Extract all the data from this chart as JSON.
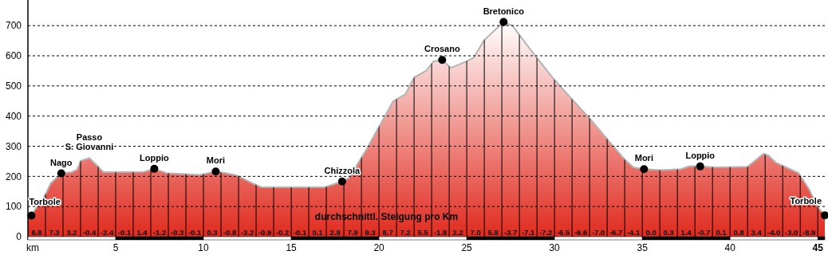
{
  "chart_data": {
    "type": "area",
    "xlim": [
      0,
      45.4
    ],
    "ylim": [
      0,
      785
    ],
    "xticks": [
      {
        "value": 0,
        "label": "km"
      },
      {
        "value": 1,
        "label": null
      },
      {
        "value": 2,
        "label": null
      },
      {
        "value": 3,
        "label": null
      },
      {
        "value": 4,
        "label": null
      },
      5,
      {
        "value": 6,
        "label": null
      },
      {
        "value": 7,
        "label": null
      },
      {
        "value": 8,
        "label": null
      },
      {
        "value": 9,
        "label": null
      },
      10,
      {
        "value": 11,
        "label": null
      },
      {
        "value": 12,
        "label": null
      },
      {
        "value": 13,
        "label": null
      },
      {
        "value": 14,
        "label": null
      },
      15,
      {
        "value": 16,
        "label": null
      },
      {
        "value": 17,
        "label": null
      },
      {
        "value": 18,
        "label": null
      },
      {
        "value": 19,
        "label": null
      },
      20,
      {
        "value": 21,
        "label": null
      },
      {
        "value": 22,
        "label": null
      },
      {
        "value": 23,
        "label": null
      },
      {
        "value": 24,
        "label": null
      },
      25,
      {
        "value": 26,
        "label": null
      },
      {
        "value": 27,
        "label": null
      },
      {
        "value": 28,
        "label": null
      },
      {
        "value": 29,
        "label": null
      },
      30,
      {
        "value": 31,
        "label": null
      },
      {
        "value": 32,
        "label": null
      },
      {
        "value": 33,
        "label": null
      },
      {
        "value": 34,
        "label": null
      },
      35,
      {
        "value": 36,
        "label": null
      },
      {
        "value": 37,
        "label": null
      },
      {
        "value": 38,
        "label": null
      },
      {
        "value": 39,
        "label": null
      },
      40,
      {
        "value": 41,
        "label": null
      },
      {
        "value": 42,
        "label": null
      },
      {
        "value": 43,
        "label": null
      },
      {
        "value": 44,
        "label": null
      },
      45
    ],
    "yticks": [
      0,
      100,
      200,
      300,
      400,
      500,
      600,
      700
    ],
    "grid": true,
    "series": [
      {
        "color": "#e02a1e",
        "x": [
          0,
          0.2,
          1.0,
          1.3,
          1.9,
          2.5,
          2.8,
          3.0,
          3.5,
          3.9,
          4.3,
          5.5,
          6.6,
          7.2,
          7.9,
          9.8,
          10.7,
          11.3,
          11.9,
          12.8,
          13.3,
          15.0,
          16.9,
          17.9,
          18.3,
          19.3,
          19.9,
          20.4,
          20.8,
          21.5,
          22.0,
          22.7,
          23.1,
          23.6,
          24.1,
          25.0,
          25.4,
          26.0,
          27.1,
          27.6,
          28.9,
          30.0,
          30.9,
          32.0,
          33.1,
          34.0,
          34.5,
          35.1,
          36.1,
          37.2,
          37.7,
          38.3,
          39.2,
          41.0,
          41.9,
          42.2,
          42.6,
          43.2,
          43.9,
          44.5,
          45.0,
          45.4
        ],
        "values": [
          70,
          72,
          140,
          177,
          210,
          214,
          222,
          251,
          261,
          238,
          214,
          214,
          215,
          225,
          211,
          205,
          216,
          211,
          203,
          177,
          164,
          164,
          164,
          183,
          195,
          291,
          354,
          406,
          449,
          472,
          528,
          551,
          581,
          586,
          560,
          582,
          594,
          652,
          712,
          700,
          600,
          520,
          462,
          393,
          317,
          256,
          230,
          224,
          221,
          224,
          234,
          233,
          230,
          232,
          275,
          269,
          246,
          230,
          211,
          158,
          98,
          71
        ]
      },
      {
        "type": "scatter",
        "color": "#000000",
        "marker": "circle",
        "x": [
          0.2,
          1.9,
          7.2,
          10.7,
          17.9,
          23.6,
          27.1,
          35.1,
          38.3,
          45.4
        ],
        "values": [
          70,
          210,
          225,
          216,
          183,
          586,
          712,
          224,
          233,
          71
        ]
      }
    ],
    "annotations": [
      "durchschnittl. Steigung pro Km",
      {
        "text": "Torbole",
        "x": 0.2,
        "y": 70
      },
      {
        "text": "Nago",
        "x": 1.9,
        "y": 210
      },
      {
        "text": "Passo S. Giovanni",
        "x": 3.5,
        "y": 261
      },
      {
        "text": "Loppio",
        "x": 7.2,
        "y": 225
      },
      {
        "text": "Mori",
        "x": 10.7,
        "y": 216
      },
      {
        "text": "Chizzola",
        "x": 17.9,
        "y": 183
      },
      {
        "text": "Crosano",
        "x": 23.6,
        "y": 586
      },
      {
        "text": "Bretonico",
        "x": 27.1,
        "y": 712
      },
      {
        "text": "Mori",
        "x": 35.1,
        "y": 224
      },
      {
        "text": "Loppio",
        "x": 38.3,
        "y": 233
      },
      {
        "text": "Torbole",
        "x": 45.4,
        "y": 71
      },
      {
        "text": "6.8",
        "x": 0.5,
        "y": 0
      },
      {
        "text": "7.3",
        "x": 1.5,
        "y": 0
      },
      {
        "text": "3.2",
        "x": 2.5,
        "y": 0
      },
      {
        "text": "-0.4",
        "x": 3.5,
        "y": 0
      },
      {
        "text": "-2.4",
        "x": 4.5,
        "y": 0
      },
      {
        "text": "-0.1",
        "x": 5.5,
        "y": 0
      },
      {
        "text": "1.4",
        "x": 6.5,
        "y": 0
      },
      {
        "text": "-1.2",
        "x": 7.5,
        "y": 0
      },
      {
        "text": "-0.3",
        "x": 8.5,
        "y": 0
      },
      {
        "text": "-0.1",
        "x": 9.5,
        "y": 0
      },
      {
        "text": "0.3",
        "x": 10.5,
        "y": 0
      },
      {
        "text": "-0.8",
        "x": 11.5,
        "y": 0
      },
      {
        "text": "-3.2",
        "x": 12.5,
        "y": 0
      },
      {
        "text": "-0.9",
        "x": 13.5,
        "y": 0
      },
      {
        "text": "-0.2",
        "x": 14.5,
        "y": 0
      },
      {
        "text": "-0.1",
        "x": 15.5,
        "y": 0
      },
      {
        "text": "0.1",
        "x": 16.5,
        "y": 0
      },
      {
        "text": "2.8",
        "x": 17.5,
        "y": 0
      },
      {
        "text": "7.9",
        "x": 18.5,
        "y": 0
      },
      {
        "text": "9.3",
        "x": 19.5,
        "y": 0
      },
      {
        "text": "8.7",
        "x": 20.5,
        "y": 0
      },
      {
        "text": "7.2",
        "x": 21.5,
        "y": 0
      },
      {
        "text": "5.5",
        "x": 22.5,
        "y": 0
      },
      {
        "text": "-1.8",
        "x": 23.5,
        "y": 0
      },
      {
        "text": "2.2",
        "x": 24.5,
        "y": 0
      },
      {
        "text": "7.0",
        "x": 25.5,
        "y": 0
      },
      {
        "text": "5.8",
        "x": 26.5,
        "y": 0
      },
      {
        "text": "-3.7",
        "x": 27.5,
        "y": 0
      },
      {
        "text": "-7.1",
        "x": 28.5,
        "y": 0
      },
      {
        "text": "-7.2",
        "x": 29.5,
        "y": 0
      },
      {
        "text": "-6.5",
        "x": 30.5,
        "y": 0
      },
      {
        "text": "-6.6",
        "x": 31.5,
        "y": 0
      },
      {
        "text": "-7.0",
        "x": 32.5,
        "y": 0
      },
      {
        "text": "-6.7",
        "x": 33.5,
        "y": 0
      },
      {
        "text": "-4.1",
        "x": 34.5,
        "y": 0
      },
      {
        "text": "0.0",
        "x": 35.5,
        "y": 0
      },
      {
        "text": "0.3",
        "x": 36.5,
        "y": 0
      },
      {
        "text": "1.4",
        "x": 37.5,
        "y": 0
      },
      {
        "text": "-0.7",
        "x": 38.5,
        "y": 0
      },
      {
        "text": "0.1",
        "x": 39.5,
        "y": 0
      },
      {
        "text": "0.8",
        "x": 40.5,
        "y": 0
      },
      {
        "text": "3.4",
        "x": 41.5,
        "y": 0
      },
      {
        "text": "-4.0",
        "x": 42.5,
        "y": 0
      },
      {
        "text": "-3.0",
        "x": 43.5,
        "y": 0
      },
      {
        "text": "-8.9",
        "x": 44.5,
        "y": 0
      }
    ]
  }
}
